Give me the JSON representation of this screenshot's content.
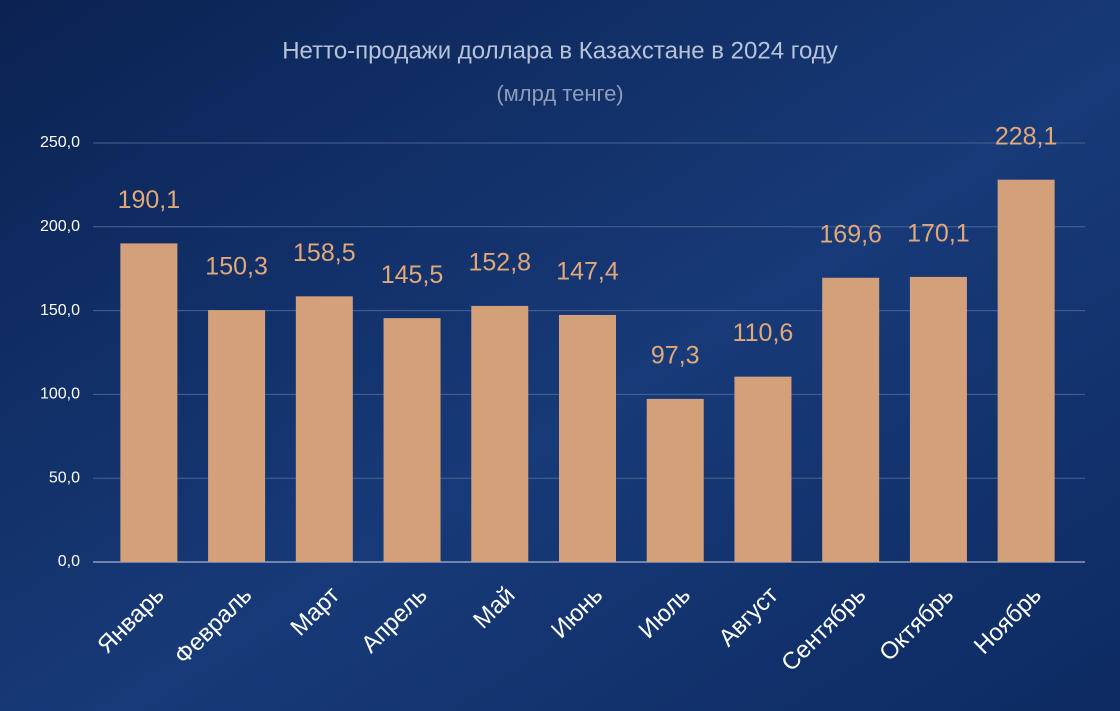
{
  "chart_data": {
    "type": "bar",
    "title": "Нетто-продажи доллара в Казахстане в 2024 году",
    "subtitle": "(млрд тенге)",
    "categories": [
      "Январь",
      "Февраль",
      "Март",
      "Апрель",
      "Май",
      "Июнь",
      "Июль",
      "Август",
      "Сентябрь",
      "Октябрь",
      "Ноябрь"
    ],
    "values": [
      190.1,
      150.3,
      158.5,
      145.5,
      152.8,
      147.4,
      97.3,
      110.6,
      169.6,
      170.1,
      228.1
    ],
    "value_labels": [
      "190,1",
      "150,3",
      "158,5",
      "145,5",
      "152,8",
      "147,4",
      "97,3",
      "110,6",
      "169,6",
      "170,1",
      "228,1"
    ],
    "color": "#d4a07a",
    "ylim": [
      0,
      250
    ],
    "yticks": [
      {
        "value": 0,
        "label": "0,0"
      },
      {
        "value": 50,
        "label": "50,0"
      },
      {
        "value": 100,
        "label": "100,0"
      },
      {
        "value": 150,
        "label": "150,0"
      },
      {
        "value": 200,
        "label": "200,0"
      },
      {
        "value": 250,
        "label": "250,0"
      }
    ],
    "grid": true
  }
}
